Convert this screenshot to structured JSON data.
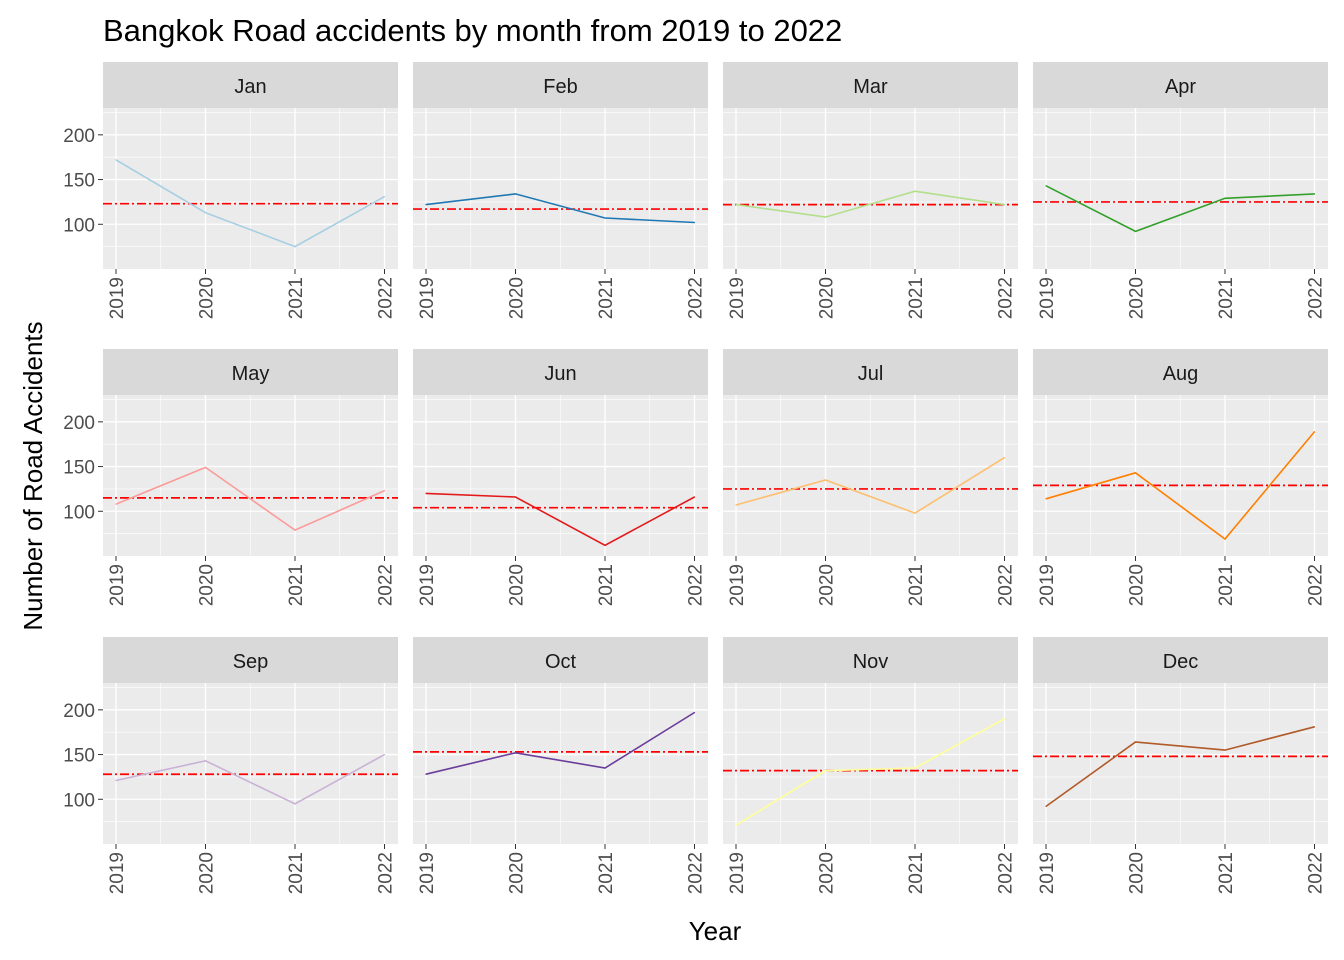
{
  "chart_data": {
    "type": "line",
    "title": "Bangkok Road accidents by month from 2019 to 2022",
    "xlabel": "Year",
    "ylabel": "Number of Road Accidents",
    "x": [
      2019,
      2020,
      2021,
      2022
    ],
    "x_tick_labels": [
      "2019",
      "2020",
      "2021",
      "2022"
    ],
    "y_ticks": [
      100,
      150,
      200
    ],
    "y_tick_labels": [
      "100",
      "150",
      "200"
    ],
    "ylim": [
      50,
      230
    ],
    "grid": true,
    "facets": [
      {
        "label": "Jan",
        "color": "#A6CEE3",
        "values": [
          172,
          113,
          75,
          131
        ],
        "mean": 123
      },
      {
        "label": "Feb",
        "color": "#1F78B4",
        "values": [
          122,
          134,
          107,
          102
        ],
        "mean": 117
      },
      {
        "label": "Mar",
        "color": "#B2DF8A",
        "values": [
          122,
          108,
          137,
          122
        ],
        "mean": 122
      },
      {
        "label": "Apr",
        "color": "#33A02C",
        "values": [
          143,
          92,
          129,
          134
        ],
        "mean": 125
      },
      {
        "label": "May",
        "color": "#FB9A99",
        "values": [
          108,
          149,
          79,
          123
        ],
        "mean": 115
      },
      {
        "label": "Jun",
        "color": "#E31A1C",
        "values": [
          120,
          116,
          62,
          116
        ],
        "mean": 104
      },
      {
        "label": "Jul",
        "color": "#FDBF6F",
        "values": [
          107,
          135,
          98,
          160
        ],
        "mean": 125
      },
      {
        "label": "Aug",
        "color": "#FF7F00",
        "values": [
          114,
          143,
          69,
          189
        ],
        "mean": 129
      },
      {
        "label": "Sep",
        "color": "#CAB2D6",
        "values": [
          121,
          143,
          95,
          150
        ],
        "mean": 128
      },
      {
        "label": "Oct",
        "color": "#6A3D9A",
        "values": [
          128,
          152,
          135,
          197
        ],
        "mean": 153
      },
      {
        "label": "Nov",
        "color": "#FFFF99",
        "values": [
          71,
          132,
          135,
          190
        ],
        "mean": 132
      },
      {
        "label": "Dec",
        "color": "#B15928",
        "values": [
          92,
          164,
          155,
          181
        ],
        "mean": 148
      }
    ],
    "mean_line_color": "#FF0000",
    "panel_background": "#EBEBEB",
    "strip_background": "#D9D9D9",
    "grid_color": "#FFFFFF"
  }
}
